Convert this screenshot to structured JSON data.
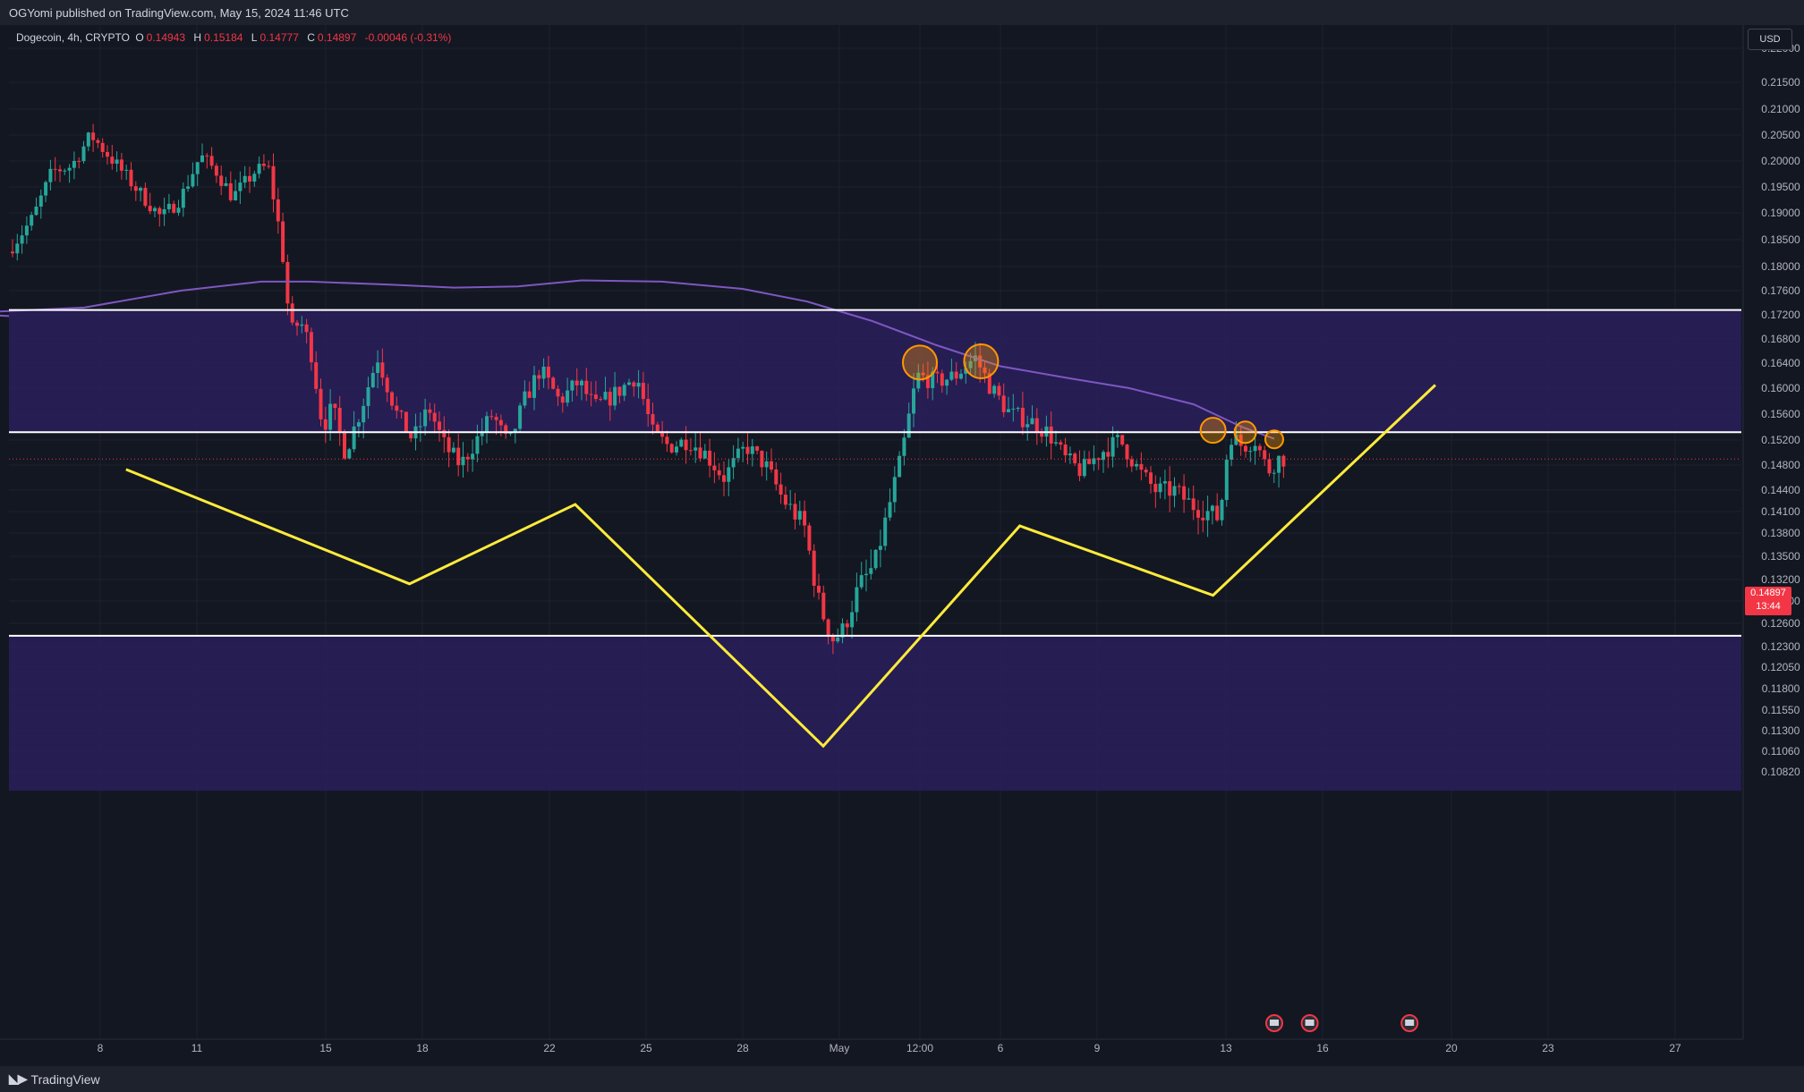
{
  "header": {
    "published": "OGYomi published on TradingView.com, May 15, 2024 11:46 UTC"
  },
  "legend": {
    "symbol": "Dogecoin, 4h, CRYPTO",
    "o_label": "O",
    "o": "0.14943",
    "h_label": "H",
    "h": "0.15184",
    "l_label": "L",
    "l": "0.14777",
    "c_label": "C",
    "c": "0.14897",
    "change": "-0.00046 (-0.31%)"
  },
  "currency_button": "USD",
  "price_badge": {
    "price": "0.14897",
    "countdown": "13:44"
  },
  "footer": {
    "brand": "TradingView"
  },
  "colors": {
    "background": "#131722",
    "up": "#26a69a",
    "down": "#f23645",
    "zone": "#2a1f5c",
    "ma": "#7e57c2",
    "pattern": "#ffeb3b",
    "circle": "#ff9800",
    "level": "#ffffff"
  },
  "chart_data": {
    "type": "candlestick",
    "symbol": "Dogecoin",
    "interval": "4h",
    "y_axis_ticks": [
      "0.22000",
      "0.21500",
      "0.21000",
      "0.20500",
      "0.20000",
      "0.19500",
      "0.19000",
      "0.18500",
      "0.18000",
      "0.17600",
      "0.17200",
      "0.16800",
      "0.16400",
      "0.16000",
      "0.15600",
      "0.15200",
      "0.14800",
      "0.14400",
      "0.14100",
      "0.13800",
      "0.13500",
      "0.13200",
      "0.12900",
      "0.12600",
      "0.12300",
      "0.12050",
      "0.11800",
      "0.11550",
      "0.11300",
      "0.11060",
      "0.10820"
    ],
    "x_axis_ticks": [
      {
        "label": "8",
        "day": 8
      },
      {
        "label": "11",
        "day": 11
      },
      {
        "label": "15",
        "day": 15
      },
      {
        "label": "18",
        "day": 18
      },
      {
        "label": "22",
        "day": 22
      },
      {
        "label": "25",
        "day": 25
      },
      {
        "label": "28",
        "day": 28
      },
      {
        "label": "May",
        "day": 31
      },
      {
        "label": "12:00",
        "day": 33.5
      },
      {
        "label": "6",
        "day": 36
      },
      {
        "label": "9",
        "day": 39
      },
      {
        "label": "13",
        "day": 43
      },
      {
        "label": "16",
        "day": 46
      },
      {
        "label": "20",
        "day": 50
      },
      {
        "label": "23",
        "day": 53
      },
      {
        "label": "27",
        "day": 57
      }
    ],
    "x_unit": "days from Apr 1 (Apr 8 = 8, May 1 = 31)",
    "last_price": 0.14897,
    "horizontal_levels": [
      0.1728,
      0.1532,
      0.1244
    ],
    "zones": [
      {
        "top": 0.1728,
        "bottom": 0.1532
      },
      {
        "top": 0.1244,
        "bottom": 0.106
      }
    ],
    "moving_average": [
      [
        3.5,
        0.1722
      ],
      [
        7.5,
        0.1732
      ],
      [
        10.5,
        0.176
      ],
      [
        13,
        0.1775
      ],
      [
        14.5,
        0.1775
      ],
      [
        17,
        0.177
      ],
      [
        19,
        0.1765
      ],
      [
        21,
        0.1767
      ],
      [
        23,
        0.1777
      ],
      [
        25.5,
        0.1775
      ],
      [
        28,
        0.1763
      ],
      [
        30,
        0.1742
      ],
      [
        32,
        0.171
      ],
      [
        34,
        0.167
      ],
      [
        36,
        0.1635
      ],
      [
        38,
        0.1617
      ],
      [
        40,
        0.16
      ],
      [
        42,
        0.1575
      ],
      [
        43.5,
        0.154
      ],
      [
        44.5,
        0.1522
      ]
    ],
    "pattern_line": [
      [
        8.8,
        0.1473
      ],
      [
        17.6,
        0.1314
      ],
      [
        22.8,
        0.142
      ],
      [
        30.5,
        0.1112
      ],
      [
        36.6,
        0.139
      ],
      [
        42.6,
        0.1298
      ],
      [
        49.5,
        0.1605
      ]
    ],
    "circles": [
      {
        "day": 33.5,
        "price": 0.1641
      },
      {
        "day": 35.4,
        "price": 0.1643
      },
      {
        "day": 42.6,
        "price": 0.1535
      },
      {
        "day": 43.6,
        "price": 0.1532
      },
      {
        "day": 44.5,
        "price": 0.1521
      }
    ],
    "events": [
      {
        "day": 44.5
      },
      {
        "day": 45.6
      },
      {
        "day": 48.7
      }
    ],
    "candles_path": [
      [
        3.5,
        0.169
      ],
      [
        4,
        0.175
      ],
      [
        5,
        0.181
      ],
      [
        6,
        0.189
      ],
      [
        6.6,
        0.198
      ],
      [
        7.2,
        0.199
      ],
      [
        7.8,
        0.205
      ],
      [
        8.5,
        0.2
      ],
      [
        9.3,
        0.194
      ],
      [
        10,
        0.189
      ],
      [
        10.6,
        0.193
      ],
      [
        11.2,
        0.201
      ],
      [
        11.7,
        0.198
      ],
      [
        12.2,
        0.193
      ],
      [
        12.9,
        0.198
      ],
      [
        13.3,
        0.199
      ],
      [
        13.7,
        0.185
      ],
      [
        14,
        0.169
      ],
      [
        14.3,
        0.171
      ],
      [
        14.6,
        0.167
      ],
      [
        15,
        0.154
      ],
      [
        15.3,
        0.157
      ],
      [
        15.7,
        0.15
      ],
      [
        16.2,
        0.157
      ],
      [
        16.7,
        0.165
      ],
      [
        17.3,
        0.156
      ],
      [
        17.8,
        0.152
      ],
      [
        18.3,
        0.157
      ],
      [
        18.8,
        0.151
      ],
      [
        19.3,
        0.148
      ],
      [
        19.8,
        0.152
      ],
      [
        20.3,
        0.156
      ],
      [
        20.8,
        0.151
      ],
      [
        21.3,
        0.158
      ],
      [
        21.8,
        0.163
      ],
      [
        22.4,
        0.158
      ],
      [
        23,
        0.161
      ],
      [
        23.5,
        0.157
      ],
      [
        24.1,
        0.159
      ],
      [
        24.8,
        0.162
      ],
      [
        25.3,
        0.153
      ],
      [
        25.8,
        0.151
      ],
      [
        26.4,
        0.152
      ],
      [
        26.9,
        0.15
      ],
      [
        27.5,
        0.146
      ],
      [
        28.2,
        0.151
      ],
      [
        28.8,
        0.148
      ],
      [
        29.3,
        0.143
      ],
      [
        30,
        0.139
      ],
      [
        30.5,
        0.128
      ],
      [
        30.9,
        0.124
      ],
      [
        31.2,
        0.125
      ],
      [
        31.7,
        0.131
      ],
      [
        32.2,
        0.134
      ],
      [
        32.6,
        0.141
      ],
      [
        33,
        0.149
      ],
      [
        33.5,
        0.162
      ],
      [
        34.1,
        0.161
      ],
      [
        34.7,
        0.162
      ],
      [
        35.3,
        0.165
      ],
      [
        35.8,
        0.16
      ],
      [
        36.4,
        0.156
      ],
      [
        37,
        0.155
      ],
      [
        37.6,
        0.153
      ],
      [
        38.1,
        0.149
      ],
      [
        38.6,
        0.147
      ],
      [
        39.2,
        0.15
      ],
      [
        39.8,
        0.152
      ],
      [
        40.4,
        0.147
      ],
      [
        40.9,
        0.144
      ],
      [
        41.5,
        0.144
      ],
      [
        42,
        0.142
      ],
      [
        42.5,
        0.141
      ],
      [
        42.9,
        0.14
      ],
      [
        43.2,
        0.153
      ],
      [
        43.6,
        0.151
      ],
      [
        44,
        0.152
      ],
      [
        44.4,
        0.147
      ],
      [
        44.7,
        0.149
      ]
    ]
  }
}
